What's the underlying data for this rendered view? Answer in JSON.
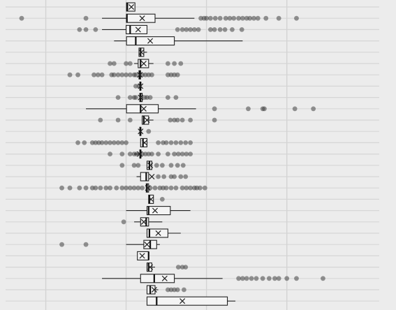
{
  "chart_data": {
    "type": "boxplot",
    "orientation": "horizontal",
    "title": "",
    "xlabel": "",
    "ylabel": "",
    "xlim": [
      -1.0,
      3.65
    ],
    "grid": true,
    "gridlines_x": [
      -0.5,
      0.5,
      1.5,
      2.5
    ],
    "mean_marker": "x",
    "rows": [
      {
        "q1": 0.505,
        "median": 0.515,
        "q3": 0.61,
        "low": 0.505,
        "high": 0.61,
        "mean": 0.565,
        "outliers": []
      },
      {
        "q1": 0.505,
        "median": 0.51,
        "q3": 0.86,
        "low": 0.2,
        "high": 1.35,
        "mean": 0.7,
        "outliers": [
          -0.8,
          -0.0,
          1.43,
          1.47,
          1.5,
          1.55,
          1.61,
          1.67,
          1.74,
          1.79,
          1.84,
          1.9,
          1.95,
          2.0,
          2.04,
          2.09,
          2.14,
          2.24,
          2.4,
          2.62
        ]
      },
      {
        "q1": 0.5,
        "median": 0.55,
        "q3": 0.76,
        "low": 0.2,
        "high": 0.76,
        "mean": 0.65,
        "outliers": [
          -0.08,
          -0.0,
          0.12,
          1.14,
          1.2,
          1.25,
          1.3,
          1.35,
          1.4,
          1.55,
          1.6,
          1.67,
          1.73,
          1.82,
          1.94
        ]
      },
      {
        "q1": 0.505,
        "median": 0.62,
        "q3": 1.1,
        "low": 0.35,
        "high": 1.95,
        "mean": 0.8,
        "outliers": []
      },
      {
        "q1": 0.66,
        "median": 0.68,
        "q3": 0.72,
        "low": 0.66,
        "high": 0.76,
        "mean": 0.69,
        "outliers": []
      },
      {
        "q1": 0.65,
        "median": 0.68,
        "q3": 0.78,
        "low": 0.6,
        "high": 0.84,
        "mean": 0.72,
        "outliers": [
          0.3,
          0.35,
          0.5,
          0.55,
          1.02,
          1.1,
          1.18
        ]
      },
      {
        "q1": 0.66,
        "median": 0.67,
        "q3": 0.68,
        "low": 0.66,
        "high": 0.68,
        "mean": 0.67,
        "outliers": [
          -0.2,
          -0.1,
          0.1,
          0.15,
          0.2,
          0.32,
          0.35,
          0.4,
          0.45,
          0.5,
          0.55,
          0.6,
          0.62,
          0.7,
          0.74,
          0.78,
          0.82,
          1.02,
          1.06,
          1.1,
          1.14
        ]
      },
      {
        "q1": 0.67,
        "median": 0.68,
        "q3": 0.68,
        "low": 0.67,
        "high": 0.68,
        "mean": 0.68,
        "outliers": [
          0.62,
          0.66
        ]
      },
      {
        "q1": 0.67,
        "median": 0.68,
        "q3": 0.7,
        "low": 0.67,
        "high": 0.7,
        "mean": 0.68,
        "outliers": [
          0.4,
          0.55,
          0.6,
          0.62,
          0.73,
          0.76,
          0.8,
          1.02,
          1.12
        ]
      },
      {
        "q1": 0.505,
        "median": 0.68,
        "q3": 0.9,
        "low": 0.0,
        "high": 1.37,
        "mean": 0.72,
        "outliers": [
          1.6,
          2.02,
          2.2,
          2.22,
          2.6,
          2.83
        ]
      },
      {
        "q1": 0.7,
        "median": 0.72,
        "q3": 0.78,
        "low": 0.7,
        "high": 0.84,
        "mean": 0.76,
        "outliers": [
          0.18,
          0.4,
          0.55,
          1.05,
          1.1,
          1.14,
          1.2,
          1.3,
          1.6
        ]
      },
      {
        "q1": 0.67,
        "median": 0.68,
        "q3": 0.68,
        "low": 0.67,
        "high": 0.68,
        "mean": 0.68,
        "outliers": [
          0.78
        ]
      },
      {
        "q1": 0.68,
        "median": 0.71,
        "q3": 0.76,
        "low": 0.68,
        "high": 0.76,
        "mean": 0.73,
        "outliers": [
          -0.1,
          -0.02,
          0.08,
          0.12,
          0.16,
          0.2,
          0.25,
          0.3,
          0.35,
          0.4,
          0.45,
          0.5,
          0.9,
          0.96,
          1.0,
          1.06,
          1.12,
          1.18,
          1.24,
          1.3
        ]
      },
      {
        "q1": 0.67,
        "median": 0.68,
        "q3": 0.68,
        "low": 0.6,
        "high": 0.68,
        "mean": 0.67,
        "outliers": [
          0.3,
          0.45,
          0.55,
          0.6,
          0.63,
          0.7,
          0.74,
          0.78,
          0.82,
          0.9,
          1.02,
          1.1,
          1.15,
          1.2,
          1.25,
          1.3
        ]
      },
      {
        "q1": 0.76,
        "median": 0.79,
        "q3": 0.82,
        "low": 0.76,
        "high": 0.82,
        "mean": 0.8,
        "outliers": [
          0.45,
          0.6,
          0.65,
          0.88,
          0.95,
          1.06,
          1.14,
          1.21
        ]
      },
      {
        "q1": 0.68,
        "median": 0.75,
        "q3": 0.78,
        "low": 0.63,
        "high": 0.78,
        "mean": 0.82,
        "outliers": [
          0.9,
          0.97,
          1.06,
          1.1,
          1.18,
          1.24
        ]
      },
      {
        "q1": 0.75,
        "median": 0.76,
        "q3": 0.78,
        "low": 0.75,
        "high": 0.78,
        "mean": 0.77,
        "outliers": [
          -0.3,
          -0.2,
          -0.08,
          0.0,
          0.08,
          0.12,
          0.18,
          0.25,
          0.3,
          0.38,
          0.45,
          0.5,
          0.55,
          0.6,
          0.65,
          0.7,
          0.8,
          0.86,
          0.92,
          0.96,
          1.0,
          1.06,
          1.12,
          1.2,
          1.25,
          1.3,
          1.35,
          1.38,
          1.42,
          1.48
        ]
      },
      {
        "q1": 0.78,
        "median": 0.79,
        "q3": 0.84,
        "low": 0.78,
        "high": 0.84,
        "mean": 0.81,
        "outliers": [
          0.95
        ]
      },
      {
        "q1": 0.76,
        "median": 0.78,
        "q3": 1.05,
        "low": 0.5,
        "high": 1.3,
        "mean": 0.86,
        "outliers": []
      },
      {
        "q1": 0.68,
        "median": 0.75,
        "q3": 0.78,
        "low": 0.6,
        "high": 0.95,
        "mean": 0.72,
        "outliers": [
          0.47
        ]
      },
      {
        "q1": 0.76,
        "median": 0.79,
        "q3": 1.02,
        "low": 0.76,
        "high": 1.18,
        "mean": 0.9,
        "outliers": []
      },
      {
        "q1": 0.72,
        "median": 0.8,
        "q3": 0.88,
        "low": 0.5,
        "high": 0.92,
        "mean": 0.76,
        "outliers": [
          -0.3,
          0.0
        ]
      },
      {
        "q1": 0.64,
        "median": 0.78,
        "q3": 0.78,
        "low": 0.64,
        "high": 0.78,
        "mean": 0.7,
        "outliers": []
      },
      {
        "q1": 0.76,
        "median": 0.78,
        "q3": 0.82,
        "low": 0.76,
        "high": 0.86,
        "mean": 0.8,
        "outliers": [
          1.15,
          1.2,
          1.24
        ]
      },
      {
        "q1": 0.68,
        "median": 0.85,
        "q3": 1.1,
        "low": 0.2,
        "high": 1.7,
        "mean": 0.98,
        "outliers": [
          1.9,
          1.95,
          2.0,
          2.06,
          2.12,
          2.2,
          2.28,
          2.35,
          2.4,
          2.5,
          2.62,
          2.95
        ]
      },
      {
        "q1": 0.76,
        "median": 0.8,
        "q3": 0.86,
        "low": 0.76,
        "high": 0.9,
        "mean": 0.85,
        "outliers": [
          1.02,
          1.06,
          1.1,
          1.14,
          1.22
        ]
      },
      {
        "q1": 0.76,
        "median": 0.88,
        "q3": 1.76,
        "low": 0.76,
        "high": 1.86,
        "mean": 1.2,
        "outliers": []
      }
    ]
  }
}
